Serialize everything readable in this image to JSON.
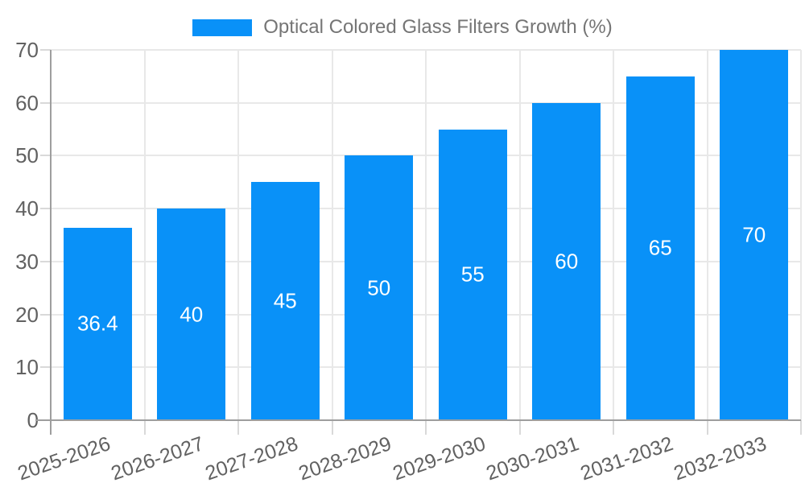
{
  "chart_data": {
    "type": "bar",
    "title": "Optical Colored Glass Filters Growth (%)",
    "categories": [
      "2025-2026",
      "2026-2027",
      "2027-2028",
      "2028-2029",
      "2029-2030",
      "2030-2031",
      "2031-2032",
      "2032-2033"
    ],
    "values": [
      36.4,
      40,
      45,
      50,
      55,
      60,
      65,
      70
    ],
    "bar_labels": [
      "36.4",
      "40",
      "45",
      "50",
      "55",
      "60",
      "65",
      "70"
    ],
    "yticks": [
      0,
      10,
      20,
      30,
      40,
      50,
      60,
      70
    ],
    "ylim": [
      0,
      70
    ],
    "xlabel": "",
    "ylabel": "",
    "grid": true,
    "legend_position": "top-center",
    "x_label_rotation_deg": -19,
    "colors": {
      "bar": "#0991f8",
      "bar_label": "#ffffff",
      "axis_line": "#9e9e9e",
      "grid_line": "#e8e8e8",
      "tick_line": "#d9d9d9",
      "axis_text": "#616161",
      "legend_text": "#757575",
      "background": "#ffffff"
    }
  }
}
